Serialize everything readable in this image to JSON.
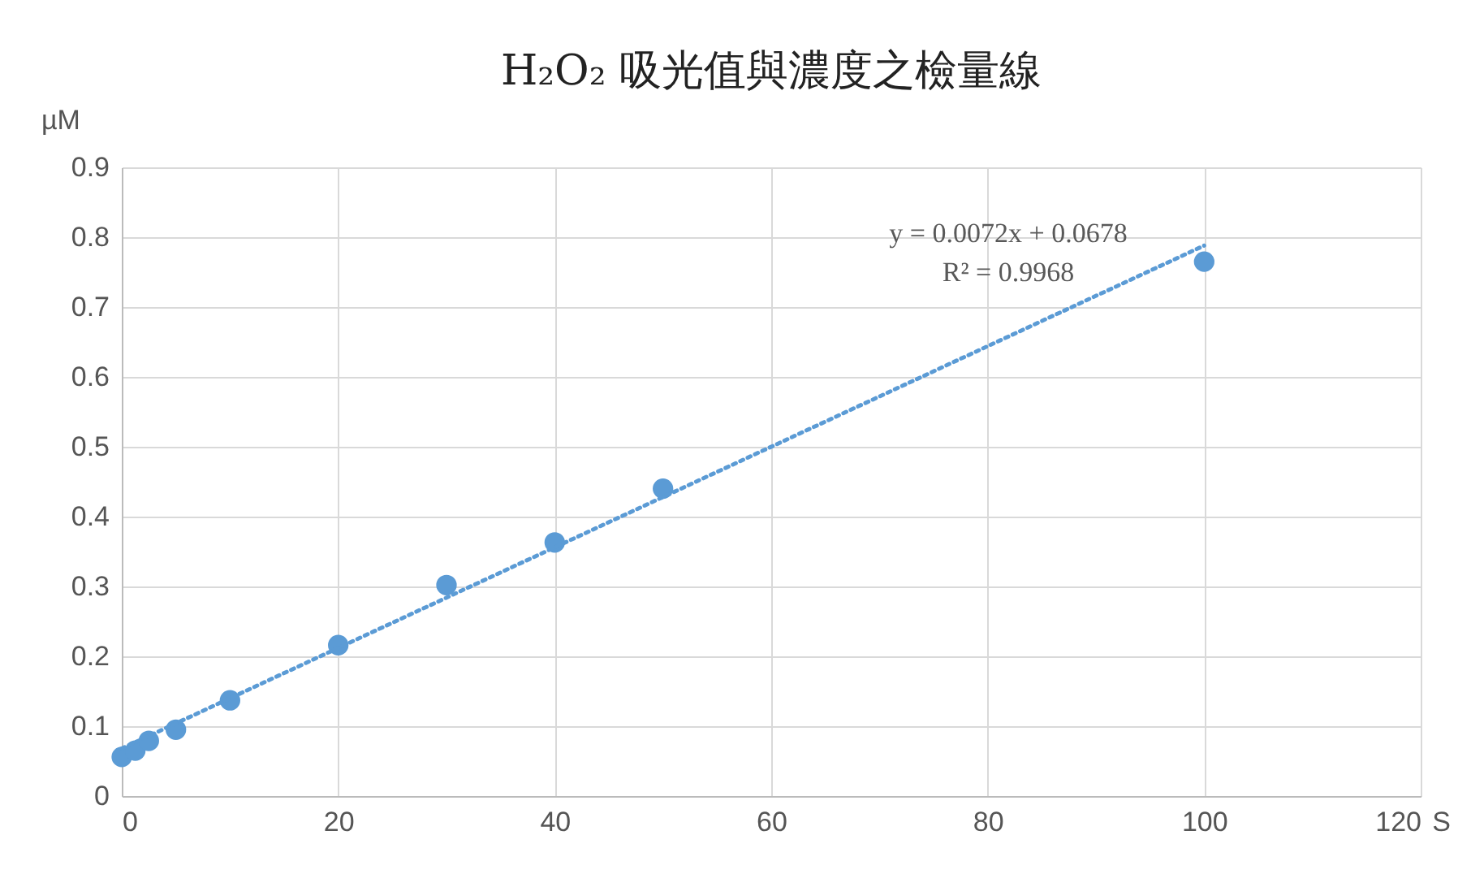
{
  "chart_data": {
    "type": "scatter",
    "title": "H₂O₂ 吸光值與濃度之檢量線",
    "xlabel": "S",
    "ylabel": "µM",
    "xlim": [
      0,
      120
    ],
    "xticks": [
      0,
      20,
      40,
      60,
      80,
      100,
      120
    ],
    "ylim": [
      0,
      0.9
    ],
    "yticks": [
      0,
      0.1,
      0.2,
      0.3,
      0.4,
      0.5,
      0.6,
      0.7,
      0.8,
      0.9
    ],
    "grid": true,
    "marker": "circle",
    "series": [
      {
        "color": "#5b9bd5",
        "x": [
          0,
          1.25,
          2.5,
          5,
          10,
          20,
          30,
          40,
          50,
          100
        ],
        "values": [
          0.056,
          0.065,
          0.079,
          0.095,
          0.137,
          0.216,
          0.302,
          0.363,
          0.44,
          0.765
        ]
      },
      {
        "type": "line",
        "color": "#5b9bd5",
        "line_style": "dotted",
        "marker": "none",
        "x": [
          0,
          100
        ],
        "values": [
          0.068,
          0.788
        ]
      }
    ],
    "annotations": [
      "y = 0.0072x + 0.0678",
      "R² = 0.9968"
    ]
  }
}
